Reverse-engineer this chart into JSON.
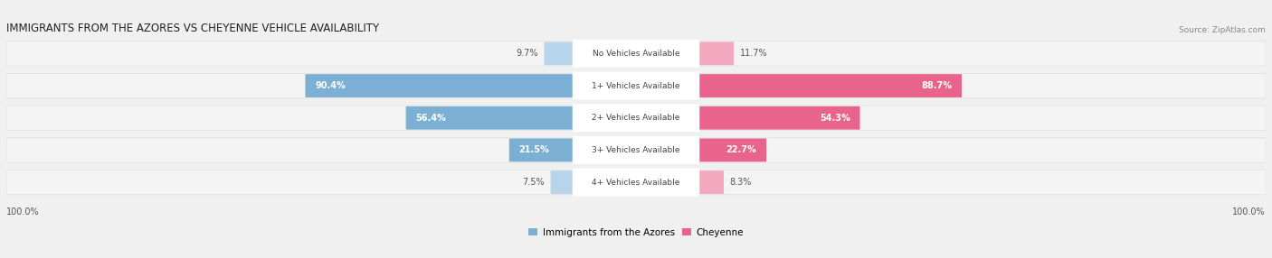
{
  "title": "IMMIGRANTS FROM THE AZORES VS CHEYENNE VEHICLE AVAILABILITY",
  "source": "Source: ZipAtlas.com",
  "categories": [
    "No Vehicles Available",
    "1+ Vehicles Available",
    "2+ Vehicles Available",
    "3+ Vehicles Available",
    "4+ Vehicles Available"
  ],
  "azores_values": [
    9.7,
    90.4,
    56.4,
    21.5,
    7.5
  ],
  "cheyenne_values": [
    11.7,
    88.7,
    54.3,
    22.7,
    8.3
  ],
  "azores_color_large": "#7bafd4",
  "azores_color_small": "#b8d4ea",
  "cheyenne_color_large": "#e8648c",
  "cheyenne_color_small": "#f4a8c0",
  "azores_label": "Immigrants from the Azores",
  "cheyenne_label": "Cheyenne",
  "background_color": "#f0f0f0",
  "row_bg_color": "#f4f4f4",
  "footer_label": "100.0%",
  "center_label_bg": "#ffffff",
  "label_threshold": 20.0,
  "max_value": 100.0,
  "scale": 0.44
}
